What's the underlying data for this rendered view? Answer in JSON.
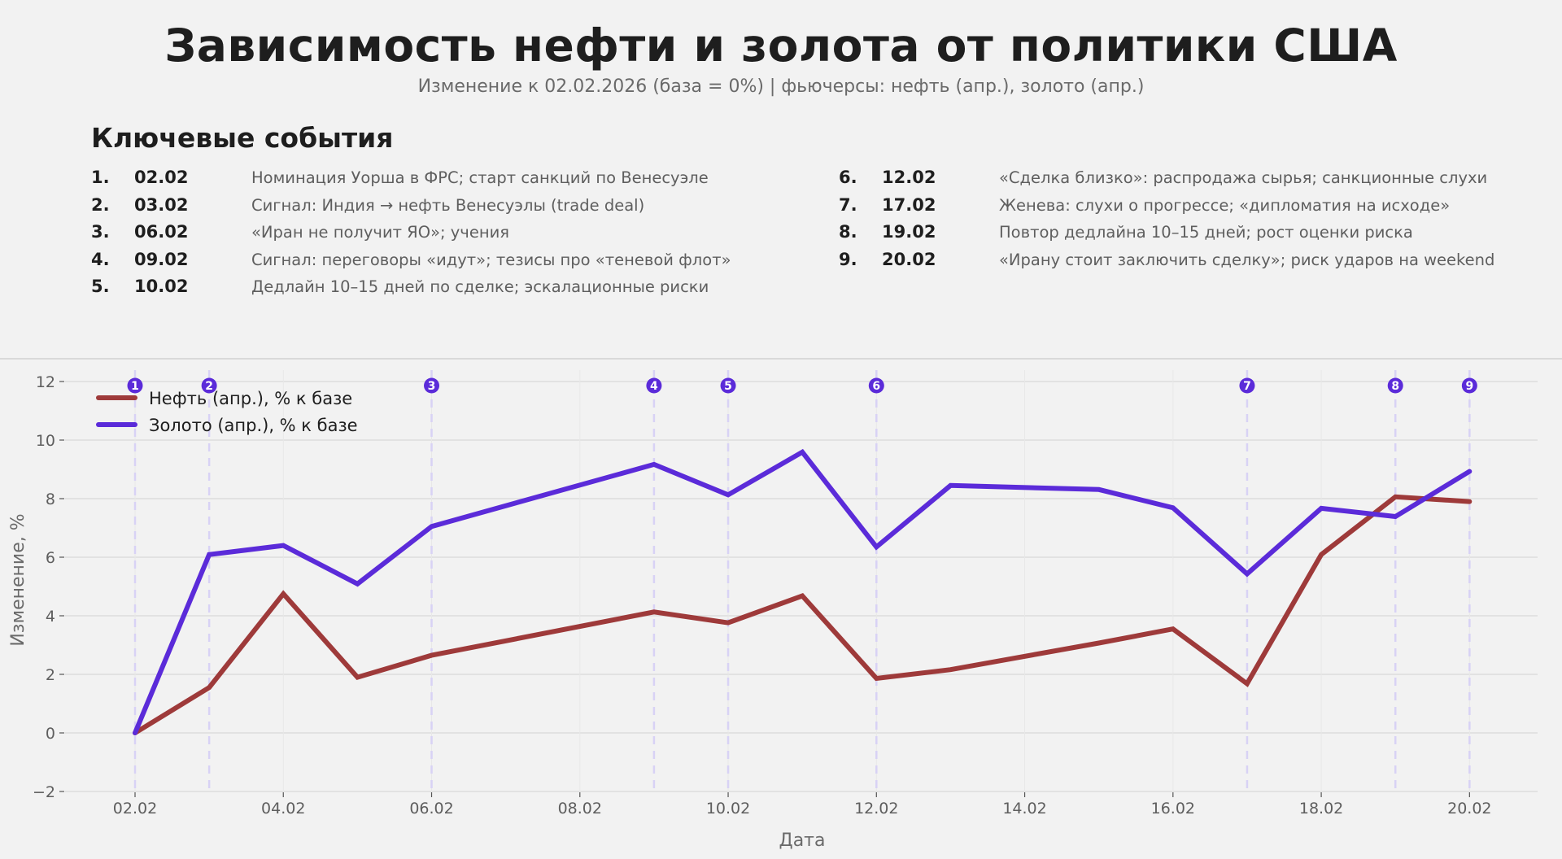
{
  "header": {
    "title": "Зависимость нефти и золота от политики США",
    "subtitle": "Изменение к 02.02.2026 (база = 0%) | фьючерсы: нефть (апр.), золото (апр.)"
  },
  "events": {
    "heading": "Ключевые события",
    "items": [
      {
        "num": "1.",
        "date": "02.02",
        "text": "Номинация Уорша в ФРС; старт санкций по Венесуэле"
      },
      {
        "num": "2.",
        "date": "03.02",
        "text": "Сигнал: Индия → нефть Венесуэлы (trade deal)"
      },
      {
        "num": "3.",
        "date": "06.02",
        "text": "«Иран не получит ЯО»; учения"
      },
      {
        "num": "4.",
        "date": "09.02",
        "text": "Сигнал: переговоры «идут»; тезисы про «теневой флот»"
      },
      {
        "num": "5.",
        "date": "10.02",
        "text": "Дедлайн 10–15 дней по сделке; эскалационные риски"
      },
      {
        "num": "6.",
        "date": "12.02",
        "text": "«Сделка близко»: распродажа сырья; санкционные слухи"
      },
      {
        "num": "7.",
        "date": "17.02",
        "text": "Женева: слухи о прогрессе; «дипломатия на исходе»"
      },
      {
        "num": "8.",
        "date": "19.02",
        "text": "Повтор дедлайна 10–15 дней; рост оценки риска"
      },
      {
        "num": "9.",
        "date": "20.02",
        "text": "«Ирану стоит заключить сделку»; риск ударов на weekend"
      }
    ]
  },
  "colors": {
    "background": "#f2f2f2",
    "oil": "#9e3a3a",
    "gold": "#5b2bd9",
    "event_line": "#d8d2f5",
    "grid": "#dcdcdc",
    "badge": "#5b2bd9"
  },
  "chart_data": {
    "type": "line",
    "title": "Зависимость нефти и золота от политики США",
    "subtitle": "Изменение к 02.02.2026 (база = 0%) | фьючерсы: нефть (апр.), золото (апр.)",
    "xlabel": "Дата",
    "ylabel": "Изменение, %",
    "ylim": [
      -2,
      12.5
    ],
    "yticks": [
      -2,
      0,
      2,
      4,
      6,
      8,
      10,
      12
    ],
    "ytick_labels": [
      "−2",
      "0",
      "2",
      "4",
      "6",
      "8",
      "10",
      "12"
    ],
    "xticks": [
      "02.02",
      "04.02",
      "06.02",
      "08.02",
      "10.02",
      "12.02",
      "14.02",
      "16.02",
      "18.02",
      "20.02"
    ],
    "grid": true,
    "legend_position": "upper left",
    "x": [
      "02.02",
      "03.02",
      "04.02",
      "05.02",
      "06.02",
      "09.02",
      "10.02",
      "11.02",
      "12.02",
      "13.02",
      "15.02",
      "16.02",
      "17.02",
      "18.02",
      "19.02",
      "20.02"
    ],
    "x_day": [
      2,
      3,
      4,
      5,
      6,
      9,
      10,
      11,
      12,
      13,
      15,
      16,
      17,
      18,
      19,
      20
    ],
    "series": [
      {
        "name": "Нефть (апр.), % к базе",
        "color": "#9e3a3a",
        "values": [
          0.0,
          1.55,
          4.75,
          1.9,
          2.65,
          4.13,
          3.76,
          4.68,
          1.86,
          2.16,
          3.07,
          3.55,
          1.68,
          6.09,
          8.06,
          7.9
        ]
      },
      {
        "name": "Золото (апр.), % к базе",
        "color": "#5b2bd9",
        "values": [
          0.0,
          6.09,
          6.4,
          5.09,
          7.05,
          9.17,
          8.13,
          9.59,
          6.35,
          8.45,
          8.31,
          7.69,
          5.43,
          7.67,
          7.39,
          8.93
        ]
      }
    ],
    "event_markers": [
      {
        "label": "1",
        "day": 2
      },
      {
        "label": "2",
        "day": 3
      },
      {
        "label": "3",
        "day": 6
      },
      {
        "label": "4",
        "day": 9
      },
      {
        "label": "5",
        "day": 10
      },
      {
        "label": "6",
        "day": 12
      },
      {
        "label": "7",
        "day": 17
      },
      {
        "label": "8",
        "day": 19
      },
      {
        "label": "9",
        "day": 20
      }
    ]
  }
}
